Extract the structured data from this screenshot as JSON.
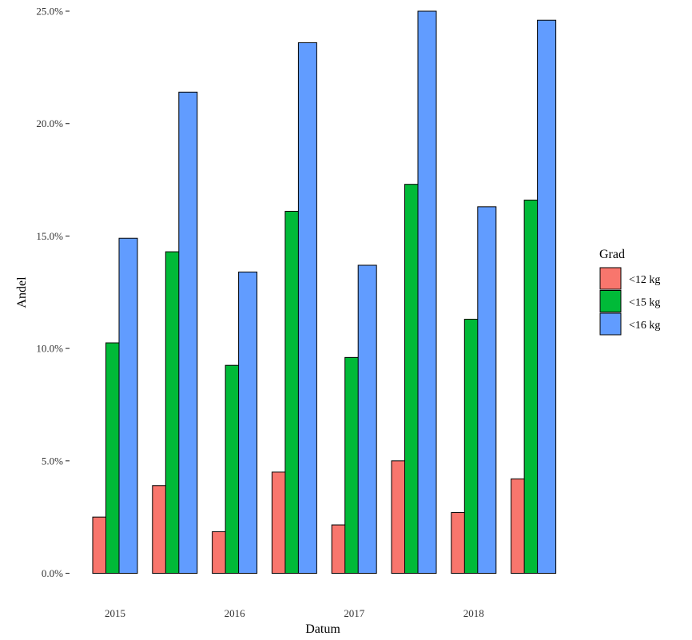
{
  "chart_data": {
    "type": "bar",
    "xlabel": "Datum",
    "ylabel": "Andel",
    "ylim": [
      0,
      25
    ],
    "y_ticks": [
      0,
      5,
      10,
      15,
      20,
      25
    ],
    "y_tick_labels": [
      "0.0%",
      "5.0%",
      "10.0%",
      "15.0%",
      "20.0%",
      "25.0%"
    ],
    "x_tick_labels": [
      "2015",
      "2016",
      "2017",
      "2018"
    ],
    "groups": 8,
    "legend": {
      "title": "Grad",
      "position": "right"
    },
    "series": [
      {
        "name": "<12 kg",
        "color": "#F8766D",
        "values": [
          2.5,
          3.9,
          1.85,
          4.5,
          2.15,
          5.0,
          2.7,
          4.2
        ]
      },
      {
        "name": "<15 kg",
        "color": "#00BA38",
        "values": [
          10.25,
          14.3,
          9.25,
          16.1,
          9.6,
          17.3,
          11.3,
          16.6
        ]
      },
      {
        "name": "<16 kg",
        "color": "#619CFF",
        "values": [
          14.9,
          21.4,
          13.4,
          23.6,
          13.7,
          25.0,
          16.3,
          24.6
        ]
      }
    ]
  }
}
